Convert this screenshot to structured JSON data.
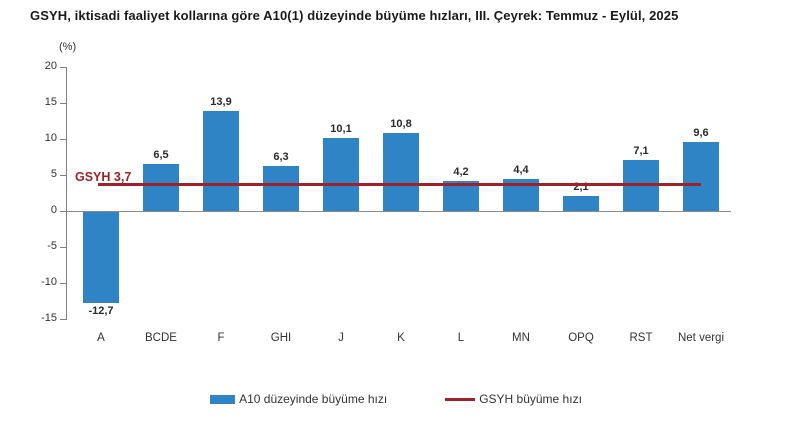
{
  "title": "GSYH, iktisadi faaliyet kollarına göre A10(1) düzeyinde büyüme hızları, III. Çeyrek: Temmuz - Eylül, 2025",
  "y_unit": "(%)",
  "colors": {
    "bar": "#2E84C4",
    "line": "#9E2227",
    "annotation": "#9E2227",
    "axis": "#808080",
    "text": "#333333"
  },
  "chart_data": {
    "type": "bar",
    "title": "GSYH, iktisadi faaliyet kollarına göre A10(1) düzeyinde büyüme hızları, III. Çeyrek: Temmuz - Eylül, 2025",
    "categories": [
      "A",
      "BCDE",
      "F",
      "GHI",
      "J",
      "K",
      "L",
      "MN",
      "OPQ",
      "RST",
      "Net vergi"
    ],
    "values": [
      -12.7,
      6.5,
      13.9,
      6.3,
      10.1,
      10.8,
      4.2,
      4.4,
      2.1,
      7.1,
      9.6
    ],
    "value_labels": [
      "-12,7",
      "6,5",
      "13,9",
      "6,3",
      "10,1",
      "10,8",
      "4,2",
      "4,4",
      "2,1",
      "7,1",
      "9,6"
    ],
    "xlabel": "",
    "ylabel": "(%)",
    "ylim": [
      -15,
      20
    ],
    "yticks": [
      20,
      15,
      10,
      5,
      0,
      -5,
      -10,
      -15
    ],
    "grid": "zero-line-only",
    "reference_line": {
      "label": "GSYH 3,7",
      "value": 3.7
    },
    "legend_position": "bottom",
    "legend": [
      {
        "label": "A10 düzeyinde büyüme hızı",
        "type": "bar",
        "color": "#2E84C4"
      },
      {
        "label": "GSYH büyüme hızı",
        "type": "line",
        "color": "#9E2227"
      }
    ]
  }
}
